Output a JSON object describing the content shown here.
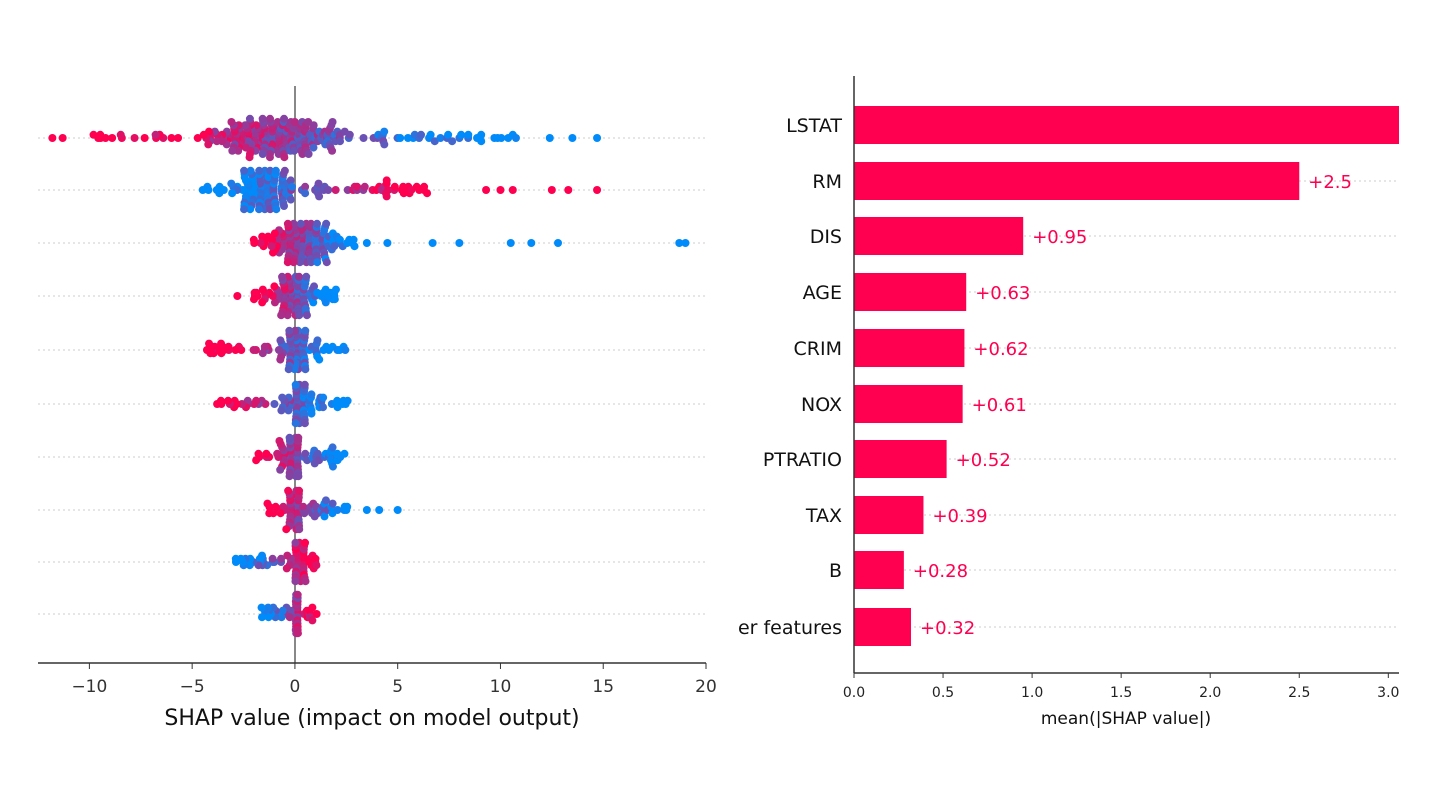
{
  "chart_data": [
    {
      "type": "scatter",
      "subtype": "beeswarm",
      "xlabel": "SHAP value (impact on model output)",
      "xlim": [
        -12.5,
        20
      ],
      "xticks": [
        -10,
        -5,
        0,
        5,
        10,
        15,
        20
      ],
      "xtick_labels": [
        "−10",
        "−5",
        "0",
        "5",
        "10",
        "15",
        "20"
      ],
      "color_low": "#008bfb",
      "color_high": "#ff0051",
      "rows": [
        {
          "core": [
            -5,
            3
          ],
          "range": [
            -10,
            11
          ],
          "red_side": "negative",
          "outliers": [
            -11.8,
            -11.3,
            12.4,
            13.5,
            14.7
          ],
          "density": 1.0
        },
        {
          "core": [
            -3,
            0
          ],
          "range": [
            -4.5,
            6.5
          ],
          "red_side": "positive",
          "outliers": [
            9.3,
            10,
            10.6,
            12.5,
            13.3,
            14.7
          ],
          "density": 0.9
        },
        {
          "core": [
            -1.5,
            2.5
          ],
          "range": [
            -2,
            3
          ],
          "red_side": "negative",
          "outliers": [
            3.5,
            4.5,
            6.7,
            8,
            10.5,
            11.5,
            12.8,
            18.7,
            19
          ],
          "density": 0.8
        },
        {
          "core": [
            -1.2,
            1.2
          ],
          "range": [
            -2,
            2
          ],
          "red_side": "negative",
          "outliers": [
            -2.8
          ],
          "density": 0.6
        },
        {
          "core": [
            -1,
            1.2
          ],
          "range": [
            -4.3,
            2.6
          ],
          "red_side": "negative",
          "outliers": [],
          "density": 0.7
        },
        {
          "core": [
            -0.5,
            1
          ],
          "range": [
            -4,
            2.6
          ],
          "red_side": "negative",
          "outliers": [],
          "density": 0.7
        },
        {
          "core": [
            -0.8,
            0.8
          ],
          "range": [
            -2.2,
            2.6
          ],
          "red_side": "negative",
          "outliers": [],
          "density": 0.6
        },
        {
          "core": [
            -0.5,
            0.6
          ],
          "range": [
            -1.5,
            2.8
          ],
          "red_side": "negative",
          "outliers": [
            3.5,
            4.1,
            5
          ],
          "density": 0.5
        },
        {
          "core": [
            -0.3,
            0.8
          ],
          "range": [
            -3,
            1.4
          ],
          "red_side": "positive",
          "outliers": [],
          "density": 0.6
        },
        {
          "core": [
            -0.3,
            0.4
          ],
          "range": [
            -1.7,
            1.2
          ],
          "red_side": "positive",
          "outliers": [],
          "density": 0.4
        }
      ]
    },
    {
      "type": "bar",
      "orientation": "horizontal",
      "xlabel": "mean(|SHAP value|)",
      "xlim": [
        0,
        3.06
      ],
      "xticks": [
        "0.0",
        "0.5",
        "1.0",
        "1.5",
        "2.0",
        "2.5",
        "3.0"
      ],
      "color": "#ff0051",
      "categories": [
        "LSTAT",
        "RM",
        "DIS",
        "AGE",
        "CRIM",
        "NOX",
        "PTRATIO",
        "TAX",
        "B",
        "er features"
      ],
      "values": [
        3.1,
        2.5,
        0.95,
        0.63,
        0.62,
        0.61,
        0.52,
        0.39,
        0.28,
        0.32
      ],
      "value_labels": [
        null,
        "+2.5",
        "+0.95",
        "+0.63",
        "+0.62",
        "+0.61",
        "+0.52",
        "+0.39",
        "+0.28",
        "+0.32"
      ]
    }
  ]
}
